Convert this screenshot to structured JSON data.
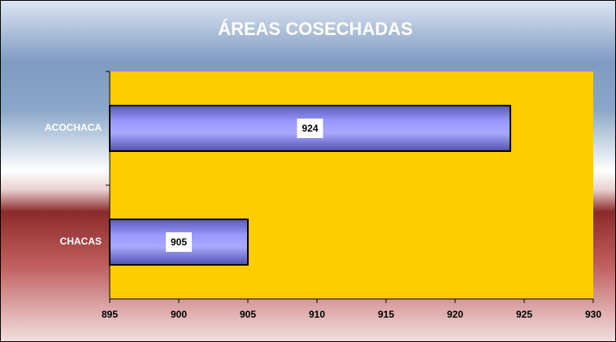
{
  "chart_data": {
    "type": "bar",
    "orientation": "horizontal",
    "title": "ÁREAS COSECHADAS",
    "categories": [
      "ACOCHACA",
      "CHACAS"
    ],
    "values": [
      924,
      905
    ],
    "color": "#9999ff",
    "plot_color": "#ffcc00",
    "xlim": [
      895,
      930
    ],
    "xticks": [
      895,
      900,
      905,
      910,
      915,
      920,
      925,
      930
    ],
    "grid": false,
    "data_labels": true
  }
}
